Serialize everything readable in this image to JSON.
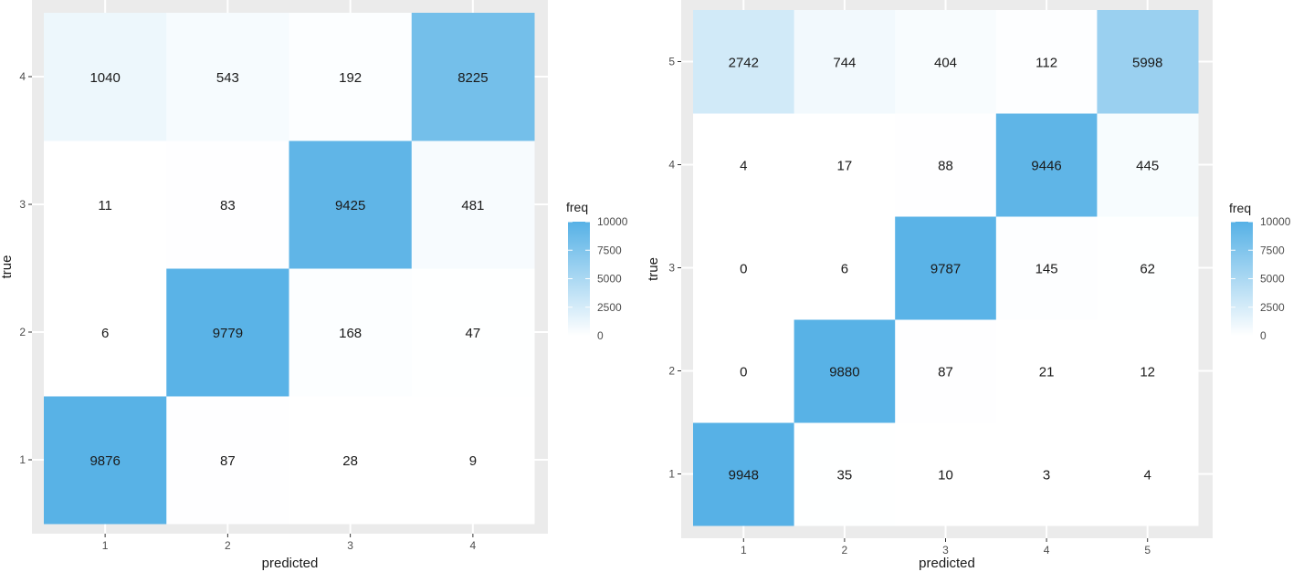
{
  "chart_data": [
    {
      "type": "heatmap",
      "title": "",
      "xlabel": "predicted",
      "ylabel": "true",
      "x_categories": [
        "1",
        "2",
        "3",
        "4"
      ],
      "y_categories": [
        "1",
        "2",
        "3",
        "4"
      ],
      "z": [
        [
          9876,
          87,
          28,
          9
        ],
        [
          6,
          9779,
          168,
          47
        ],
        [
          11,
          83,
          9425,
          481
        ],
        [
          1040,
          543,
          192,
          8225
        ]
      ],
      "legend": {
        "title": "freq",
        "min": 0,
        "max": 10000,
        "ticks": [
          0,
          2500,
          5000,
          7500,
          10000
        ],
        "low_color": "#ffffff",
        "high_color": "#56b1e6",
        "position": "right"
      },
      "grid": true,
      "panel_background": "#ebebeb"
    },
    {
      "type": "heatmap",
      "title": "",
      "xlabel": "predicted",
      "ylabel": "true",
      "x_categories": [
        "1",
        "2",
        "3",
        "4",
        "5"
      ],
      "y_categories": [
        "1",
        "2",
        "3",
        "4",
        "5"
      ],
      "z": [
        [
          9948,
          35,
          10,
          3,
          4
        ],
        [
          0,
          9880,
          87,
          21,
          12
        ],
        [
          0,
          6,
          9787,
          145,
          62
        ],
        [
          4,
          17,
          88,
          9446,
          445
        ],
        [
          2742,
          744,
          404,
          112,
          5998
        ]
      ],
      "legend": {
        "title": "freq",
        "min": 0,
        "max": 10000,
        "ticks": [
          0,
          2500,
          5000,
          7500,
          10000
        ],
        "low_color": "#ffffff",
        "high_color": "#56b1e6",
        "position": "right"
      },
      "grid": true,
      "panel_background": "#ebebeb"
    }
  ]
}
